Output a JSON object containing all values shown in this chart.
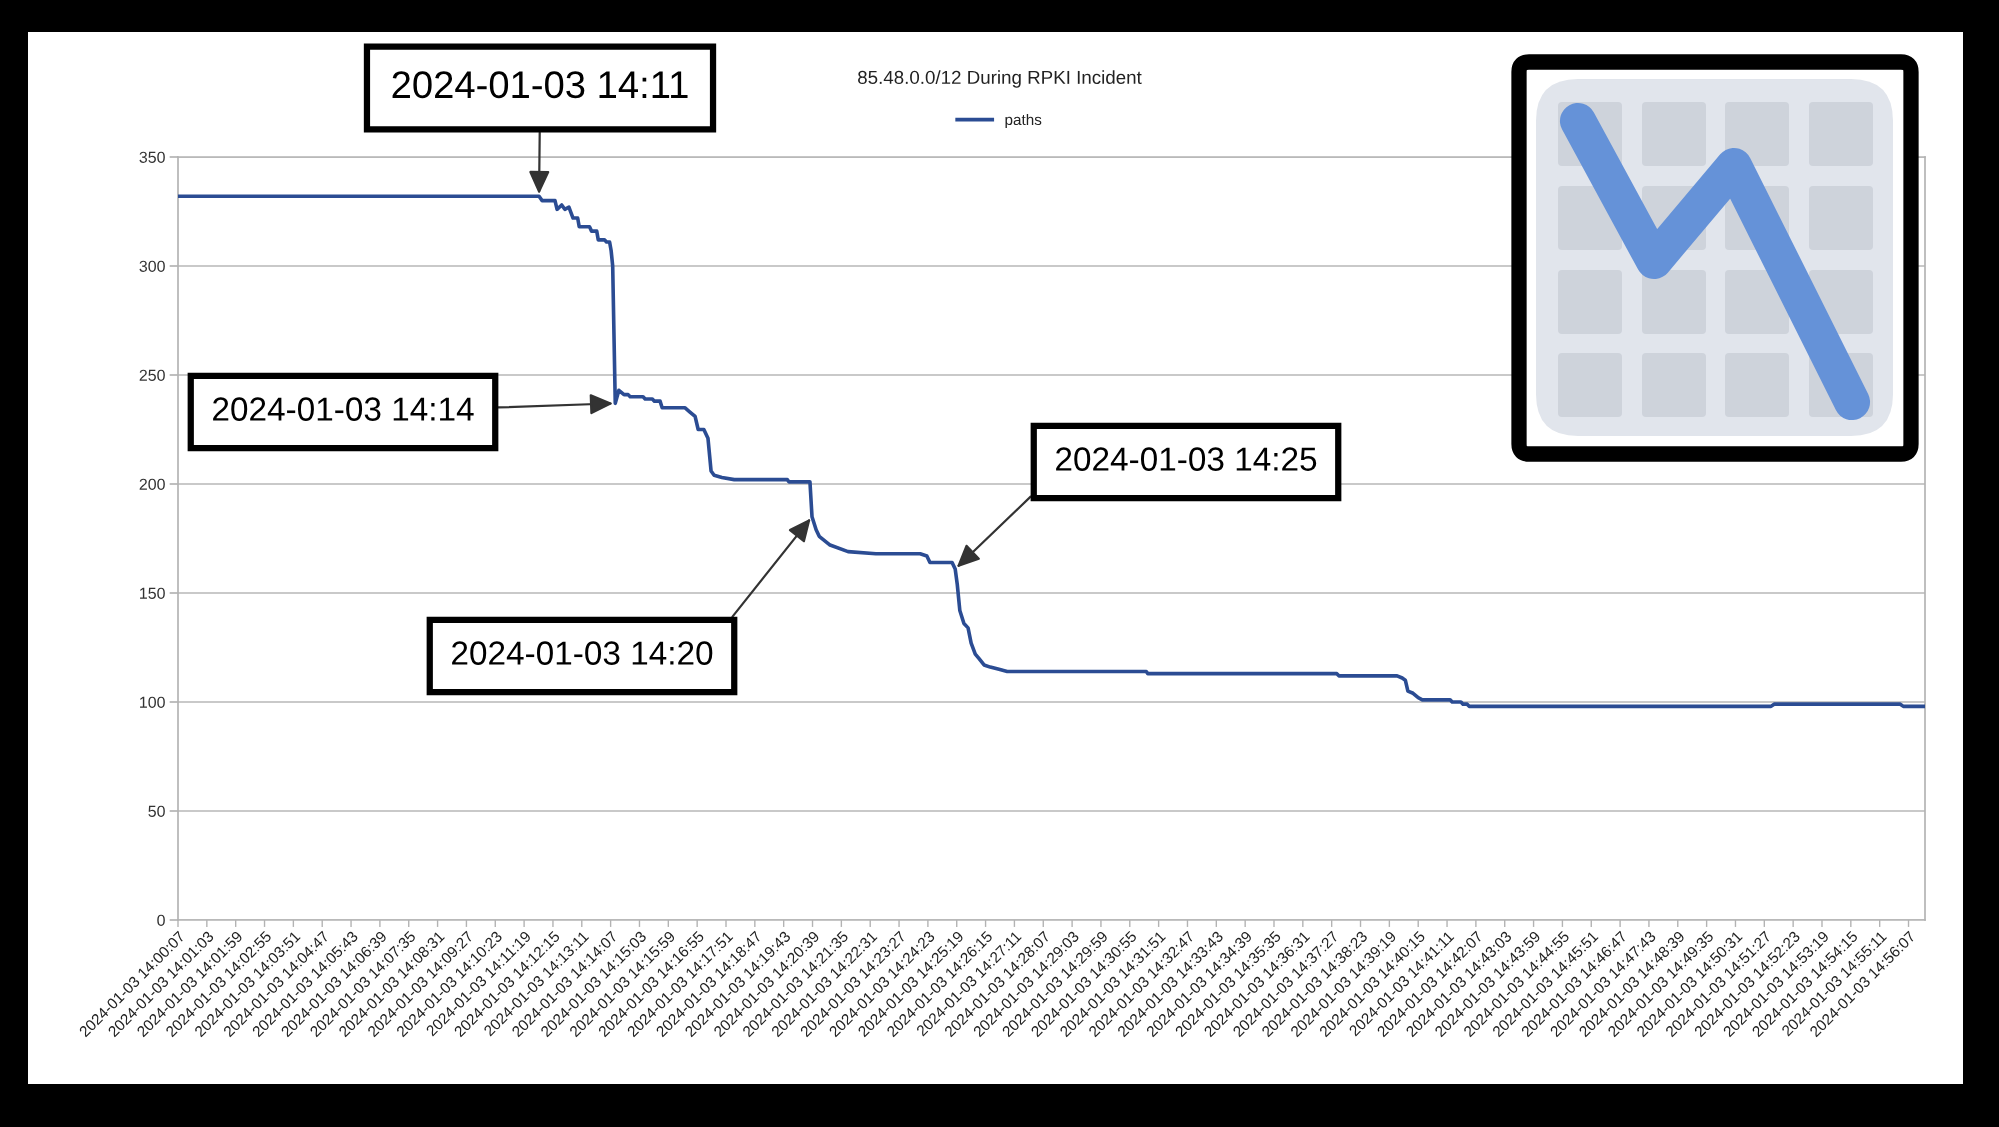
{
  "chart_data": {
    "type": "line",
    "title": "85.48.0.0/12 During RPKI Incident",
    "x": [
      "2024-01-03T14:00:07",
      "2024-01-03T14:11:48",
      "2024-01-03T14:11:54",
      "2024-01-03T14:12:19",
      "2024-01-03T14:12:23",
      "2024-01-03T14:12:32",
      "2024-01-03T14:12:38",
      "2024-01-03T14:12:46",
      "2024-01-03T14:12:54",
      "2024-01-03T14:13:03",
      "2024-01-03T14:13:06",
      "2024-01-03T14:13:26",
      "2024-01-03T14:13:30",
      "2024-01-03T14:13:40",
      "2024-01-03T14:13:43",
      "2024-01-03T14:13:55",
      "2024-01-03T14:13:59",
      "2024-01-03T14:14:05",
      "2024-01-03T14:14:08",
      "2024-01-03T14:14:11",
      "2024-01-03T14:14:16",
      "2024-01-03T14:14:23",
      "2024-01-03T14:14:33",
      "2024-01-03T14:14:41",
      "2024-01-03T14:14:45",
      "2024-01-03T14:15:10",
      "2024-01-03T14:15:14",
      "2024-01-03T14:15:28",
      "2024-01-03T14:15:32",
      "2024-01-03T14:15:43",
      "2024-01-03T14:15:47",
      "2024-01-03T14:16:31",
      "2024-01-03T14:16:41",
      "2024-01-03T14:16:51",
      "2024-01-03T14:16:57",
      "2024-01-03T14:17:08",
      "2024-01-03T14:17:16",
      "2024-01-03T14:17:22",
      "2024-01-03T14:17:28",
      "2024-01-03T14:17:43",
      "2024-01-03T14:18:07",
      "2024-01-03T14:19:50",
      "2024-01-03T14:19:53",
      "2024-01-03T14:20:34",
      "2024-01-03T14:20:38",
      "2024-01-03T14:20:46",
      "2024-01-03T14:20:52",
      "2024-01-03T14:21:13",
      "2024-01-03T14:21:48",
      "2024-01-03T14:22:42",
      "2024-01-03T14:24:08",
      "2024-01-03T14:24:21",
      "2024-01-03T14:24:27",
      "2024-01-03T14:25:10",
      "2024-01-03T14:25:16",
      "2024-01-03T14:25:20",
      "2024-01-03T14:25:25",
      "2024-01-03T14:25:33",
      "2024-01-03T14:25:41",
      "2024-01-03T14:25:47",
      "2024-01-03T14:25:55",
      "2024-01-03T14:26:02",
      "2024-01-03T14:26:12",
      "2024-01-03T14:26:24",
      "2024-01-03T14:26:41",
      "2024-01-03T14:26:57",
      "2024-01-03T14:31:27",
      "2024-01-03T14:31:30",
      "2024-01-03T14:37:37",
      "2024-01-03T14:37:41",
      "2024-01-03T14:39:34",
      "2024-01-03T14:39:44",
      "2024-01-03T14:39:50",
      "2024-01-03T14:39:55",
      "2024-01-03T14:40:05",
      "2024-01-03T14:40:15",
      "2024-01-03T14:40:23",
      "2024-01-03T14:41:17",
      "2024-01-03T14:41:21",
      "2024-01-03T14:41:38",
      "2024-01-03T14:41:42",
      "2024-01-03T14:41:50",
      "2024-01-03T14:41:54",
      "2024-01-03T14:51:40",
      "2024-01-03T14:51:46",
      "2024-01-03T14:55:51",
      "2024-01-03T14:55:57",
      "2024-01-03T14:56:39"
    ],
    "series": [
      {
        "name": "paths",
        "color": "#2b4c93",
        "values": [
          332,
          332,
          330,
          330,
          326,
          328,
          326,
          327,
          322,
          322,
          318,
          318,
          316,
          316,
          312,
          312,
          311,
          311,
          307,
          300,
          237,
          243,
          241,
          241,
          240,
          240,
          239,
          239,
          238,
          238,
          235,
          235,
          233,
          231,
          225,
          225,
          221,
          206,
          204,
          203,
          202,
          202,
          201,
          201,
          185,
          179,
          176,
          172,
          169,
          168,
          168,
          167,
          164,
          164,
          161,
          154,
          142,
          136,
          134,
          127,
          122,
          120,
          117,
          116,
          115,
          114,
          114,
          113,
          113,
          112,
          112,
          111,
          110,
          105,
          104,
          102,
          101,
          101,
          100,
          100,
          99,
          99,
          98,
          98,
          99,
          99,
          98,
          98
        ]
      }
    ],
    "xlim": [
      "2024-01-03T14:00:07",
      "2024-01-03T14:56:39"
    ],
    "xticks": [
      {
        "value": "2024-01-03T14:00:07",
        "label": "2024-01-03 14:00:07"
      },
      {
        "value": "2024-01-03T14:01:03",
        "label": "2024-01-03 14:01:03"
      },
      {
        "value": "2024-01-03T14:01:59",
        "label": "2024-01-03 14:01:59"
      },
      {
        "value": "2024-01-03T14:02:55",
        "label": "2024-01-03 14:02:55"
      },
      {
        "value": "2024-01-03T14:03:51",
        "label": "2024-01-03 14:03:51"
      },
      {
        "value": "2024-01-03T14:04:47",
        "label": "2024-01-03 14:04:47"
      },
      {
        "value": "2024-01-03T14:05:43",
        "label": "2024-01-03 14:05:43"
      },
      {
        "value": "2024-01-03T14:06:39",
        "label": "2024-01-03 14:06:39"
      },
      {
        "value": "2024-01-03T14:07:35",
        "label": "2024-01-03 14:07:35"
      },
      {
        "value": "2024-01-03T14:08:31",
        "label": "2024-01-03 14:08:31"
      },
      {
        "value": "2024-01-03T14:09:27",
        "label": "2024-01-03 14:09:27"
      },
      {
        "value": "2024-01-03T14:10:23",
        "label": "2024-01-03 14:10:23"
      },
      {
        "value": "2024-01-03T14:11:19",
        "label": "2024-01-03 14:11:19"
      },
      {
        "value": "2024-01-03T14:12:15",
        "label": "2024-01-03 14:12:15"
      },
      {
        "value": "2024-01-03T14:13:11",
        "label": "2024-01-03 14:13:11"
      },
      {
        "value": "2024-01-03T14:14:07",
        "label": "2024-01-03 14:14:07"
      },
      {
        "value": "2024-01-03T14:15:03",
        "label": "2024-01-03 14:15:03"
      },
      {
        "value": "2024-01-03T14:15:59",
        "label": "2024-01-03 14:15:59"
      },
      {
        "value": "2024-01-03T14:16:55",
        "label": "2024-01-03 14:16:55"
      },
      {
        "value": "2024-01-03T14:17:51",
        "label": "2024-01-03 14:17:51"
      },
      {
        "value": "2024-01-03T14:18:47",
        "label": "2024-01-03 14:18:47"
      },
      {
        "value": "2024-01-03T14:19:43",
        "label": "2024-01-03 14:19:43"
      },
      {
        "value": "2024-01-03T14:20:39",
        "label": "2024-01-03 14:20:39"
      },
      {
        "value": "2024-01-03T14:21:35",
        "label": "2024-01-03 14:21:35"
      },
      {
        "value": "2024-01-03T14:22:31",
        "label": "2024-01-03 14:22:31"
      },
      {
        "value": "2024-01-03T14:23:27",
        "label": "2024-01-03 14:23:27"
      },
      {
        "value": "2024-01-03T14:24:23",
        "label": "2024-01-03 14:24:23"
      },
      {
        "value": "2024-01-03T14:25:19",
        "label": "2024-01-03 14:25:19"
      },
      {
        "value": "2024-01-03T14:26:15",
        "label": "2024-01-03 14:26:15"
      },
      {
        "value": "2024-01-03T14:27:11",
        "label": "2024-01-03 14:27:11"
      },
      {
        "value": "2024-01-03T14:28:07",
        "label": "2024-01-03 14:28:07"
      },
      {
        "value": "2024-01-03T14:29:03",
        "label": "2024-01-03 14:29:03"
      },
      {
        "value": "2024-01-03T14:29:59",
        "label": "2024-01-03 14:29:59"
      },
      {
        "value": "2024-01-03T14:30:55",
        "label": "2024-01-03 14:30:55"
      },
      {
        "value": "2024-01-03T14:31:51",
        "label": "2024-01-03 14:31:51"
      },
      {
        "value": "2024-01-03T14:32:47",
        "label": "2024-01-03 14:32:47"
      },
      {
        "value": "2024-01-03T14:33:43",
        "label": "2024-01-03 14:33:43"
      },
      {
        "value": "2024-01-03T14:34:39",
        "label": "2024-01-03 14:34:39"
      },
      {
        "value": "2024-01-03T14:35:35",
        "label": "2024-01-03 14:35:35"
      },
      {
        "value": "2024-01-03T14:36:31",
        "label": "2024-01-03 14:36:31"
      },
      {
        "value": "2024-01-03T14:37:27",
        "label": "2024-01-03 14:37:27"
      },
      {
        "value": "2024-01-03T14:38:23",
        "label": "2024-01-03 14:38:23"
      },
      {
        "value": "2024-01-03T14:39:19",
        "label": "2024-01-03 14:39:19"
      },
      {
        "value": "2024-01-03T14:40:15",
        "label": "2024-01-03 14:40:15"
      },
      {
        "value": "2024-01-03T14:41:11",
        "label": "2024-01-03 14:41:11"
      },
      {
        "value": "2024-01-03T14:42:07",
        "label": "2024-01-03 14:42:07"
      },
      {
        "value": "2024-01-03T14:43:03",
        "label": "2024-01-03 14:43:03"
      },
      {
        "value": "2024-01-03T14:43:59",
        "label": "2024-01-03 14:43:59"
      },
      {
        "value": "2024-01-03T14:44:55",
        "label": "2024-01-03 14:44:55"
      },
      {
        "value": "2024-01-03T14:45:51",
        "label": "2024-01-03 14:45:51"
      },
      {
        "value": "2024-01-03T14:46:47",
        "label": "2024-01-03 14:46:47"
      },
      {
        "value": "2024-01-03T14:47:43",
        "label": "2024-01-03 14:47:43"
      },
      {
        "value": "2024-01-03T14:48:39",
        "label": "2024-01-03 14:48:39"
      },
      {
        "value": "2024-01-03T14:49:35",
        "label": "2024-01-03 14:49:35"
      },
      {
        "value": "2024-01-03T14:50:31",
        "label": "2024-01-03 14:50:31"
      },
      {
        "value": "2024-01-03T14:51:27",
        "label": "2024-01-03 14:51:27"
      },
      {
        "value": "2024-01-03T14:52:23",
        "label": "2024-01-03 14:52:23"
      },
      {
        "value": "2024-01-03T14:53:19",
        "label": "2024-01-03 14:53:19"
      },
      {
        "value": "2024-01-03T14:54:15",
        "label": "2024-01-03 14:54:15"
      },
      {
        "value": "2024-01-03T14:55:11",
        "label": "2024-01-03 14:55:11"
      },
      {
        "value": "2024-01-03T14:56:07",
        "label": "2024-01-03 14:56:07"
      }
    ],
    "ylim": [
      0,
      350
    ],
    "yticks": [
      0,
      50,
      100,
      150,
      200,
      250,
      300,
      350
    ],
    "grid": "y",
    "legend": "top",
    "annotations": [
      {
        "text": "2024-01-03 14:11",
        "x": "2024-01-03T14:11:48",
        "y": 332
      },
      {
        "text": "2024-01-03 14:14",
        "x": "2024-01-03T14:14:16",
        "y": 237
      },
      {
        "text": "2024-01-03 14:20",
        "x": "2024-01-03T14:20:38",
        "y": 185
      },
      {
        "text": "2024-01-03 14:25",
        "x": "2024-01-03T14:25:16",
        "y": 161
      }
    ]
  }
}
